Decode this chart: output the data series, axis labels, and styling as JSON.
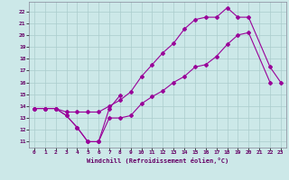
{
  "xlabel": "Windchill (Refroidissement éolien,°C)",
  "line_color": "#990099",
  "bg_color": "#cce8e8",
  "grid_color": "#aacccc",
  "xlim": [
    -0.5,
    23.5
  ],
  "ylim": [
    10.5,
    22.8
  ],
  "yticks": [
    11,
    12,
    13,
    14,
    15,
    16,
    17,
    18,
    19,
    20,
    21,
    22
  ],
  "xticks": [
    0,
    1,
    2,
    3,
    4,
    5,
    6,
    7,
    8,
    9,
    10,
    11,
    12,
    13,
    14,
    15,
    16,
    17,
    18,
    19,
    20,
    21,
    22,
    23
  ],
  "line1_x": [
    0,
    1,
    2,
    3,
    4,
    5,
    6,
    7,
    8
  ],
  "line1_y": [
    13.8,
    13.8,
    13.8,
    13.2,
    12.2,
    11.0,
    11.0,
    13.8,
    14.9
  ],
  "line2_x": [
    0,
    1,
    2,
    3,
    4,
    5,
    6,
    7,
    8,
    9,
    10,
    11,
    12,
    13,
    14,
    15,
    16,
    17,
    18,
    19,
    20,
    22
  ],
  "line2_y": [
    13.8,
    13.8,
    13.8,
    13.2,
    12.2,
    11.0,
    11.0,
    13.0,
    13.0,
    13.2,
    14.2,
    14.8,
    15.3,
    16.0,
    16.5,
    17.3,
    17.5,
    18.2,
    19.2,
    20.0,
    20.2,
    16.0
  ],
  "line3_x": [
    0,
    1,
    2,
    3,
    4,
    5,
    6,
    7,
    8,
    9,
    10,
    11,
    12,
    13,
    14,
    15,
    16,
    17,
    18,
    19,
    20,
    22,
    23
  ],
  "line3_y": [
    13.8,
    13.8,
    13.8,
    13.5,
    13.5,
    13.5,
    13.5,
    14.0,
    14.5,
    15.2,
    16.5,
    17.5,
    18.5,
    19.3,
    20.5,
    21.3,
    21.5,
    21.5,
    22.3,
    21.5,
    21.5,
    17.3,
    16.0
  ]
}
